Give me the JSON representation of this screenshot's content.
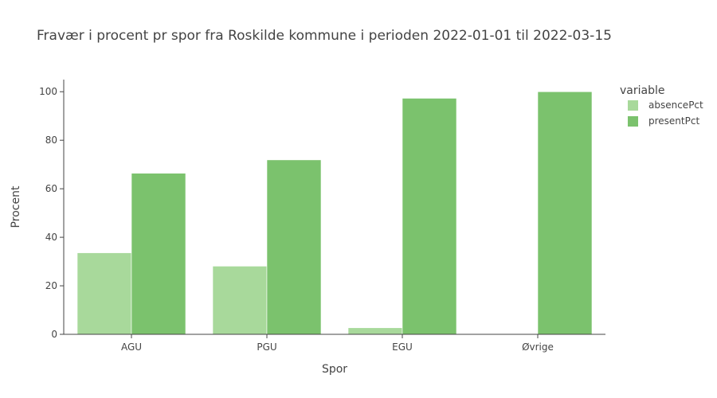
{
  "chart_data": {
    "type": "bar",
    "title": "Fravær i procent pr spor fra Roskilde kommune i perioden 2022-01-01 til 2022-03-15",
    "xlabel": "Spor",
    "ylabel": "Procent",
    "categories": [
      "AGU",
      "PGU",
      "EGU",
      "Øvrige"
    ],
    "series": [
      {
        "name": "absencePct",
        "values": [
          33.6,
          28.1,
          2.7,
          0
        ],
        "color": "#a8d99b"
      },
      {
        "name": "presentPct",
        "values": [
          66.4,
          71.9,
          97.3,
          100
        ],
        "color": "#7bc26d"
      }
    ],
    "ylim": [
      0,
      105
    ],
    "yticks": [
      0,
      20,
      40,
      60,
      80,
      100
    ],
    "legend": {
      "title": "variable",
      "placement": "top-right"
    },
    "grid": false
  }
}
